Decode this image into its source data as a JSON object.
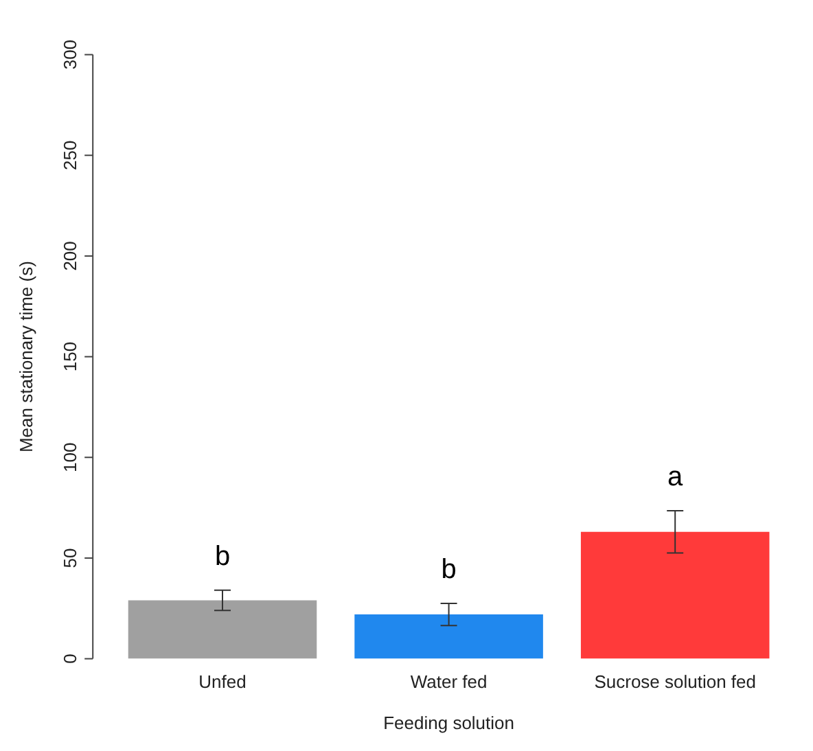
{
  "chart_data": {
    "type": "bar",
    "xlabel": "Feeding solution",
    "ylabel": "Mean stationary time (s)",
    "categories": [
      "Unfed",
      "Water fed",
      "Sucrose solution fed"
    ],
    "values": [
      29,
      22,
      63
    ],
    "colors": [
      "#a0a0a0",
      "#2088ee",
      "#ff3a3a"
    ],
    "errors": [
      5,
      5.5,
      10.5
    ],
    "ylim": [
      0,
      300
    ],
    "yticks": [
      0,
      50,
      100,
      150,
      200,
      250,
      300
    ],
    "grid": false,
    "legend": false,
    "annotations": [
      "b",
      "b",
      "a"
    ]
  }
}
